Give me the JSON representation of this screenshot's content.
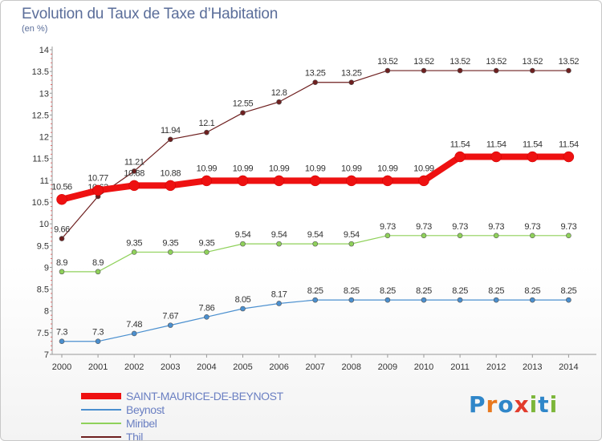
{
  "header": {
    "title": "Evolution du Taux de Taxe d’Habitation",
    "subtitle": "(en %)"
  },
  "logo": {
    "text": "Proxiti",
    "letters": [
      "P",
      "r",
      "o",
      "x",
      "i",
      "t",
      "i"
    ],
    "colors": [
      "#2f86c9",
      "#e8781e",
      "#2f86c9",
      "#e23b2c",
      "#7cb63a",
      "#2f86c9",
      "#7cb63a"
    ]
  },
  "chart_data": {
    "type": "line",
    "x": [
      "2000",
      "2001",
      "2002",
      "2003",
      "2004",
      "2005",
      "2006",
      "2007",
      "2008",
      "2009",
      "2010",
      "2011",
      "2012",
      "2013",
      "2014"
    ],
    "ylim": [
      7,
      14
    ],
    "yticks": [
      "7",
      "7.5",
      "8",
      "8.5",
      "9",
      "9.5",
      "10",
      "10.5",
      "11",
      "11.5",
      "12",
      "12.5",
      "13",
      "13.5",
      "14"
    ],
    "grid": false,
    "legend_position": "bottom-left",
    "series": [
      {
        "name": "Thil",
        "color": "#6e1f1f",
        "values": [
          9.66,
          10.63,
          11.21,
          11.94,
          12.1,
          12.55,
          12.8,
          13.25,
          13.25,
          13.52,
          13.52,
          13.52,
          13.52,
          13.52,
          13.52
        ],
        "labels": [
          "9.66",
          "10.63",
          "11.21",
          "11.94",
          "12.1",
          "12.55",
          "12.8",
          "13.25",
          "13.25",
          "13.52",
          "13.52",
          "13.52",
          "13.52",
          "13.52",
          "13.52"
        ]
      },
      {
        "name": "Miribel",
        "color": "#8fd15a",
        "values": [
          8.9,
          8.9,
          9.35,
          9.35,
          9.35,
          9.54,
          9.54,
          9.54,
          9.54,
          9.73,
          9.73,
          9.73,
          9.73,
          9.73,
          9.73
        ],
        "labels": [
          "8.9",
          "8.9",
          "9.35",
          "9.35",
          "9.35",
          "9.54",
          "9.54",
          "9.54",
          "9.54",
          "9.73",
          "9.73",
          "9.73",
          "9.73",
          "9.73",
          "9.73"
        ]
      },
      {
        "name": "Beynost",
        "color": "#4a8fcf",
        "values": [
          7.3,
          7.3,
          7.48,
          7.67,
          7.86,
          8.05,
          8.17,
          8.25,
          8.25,
          8.25,
          8.25,
          8.25,
          8.25,
          8.25,
          8.25
        ],
        "labels": [
          "7.3",
          "7.3",
          "7.48",
          "7.67",
          "7.86",
          "8.05",
          "8.17",
          "8.25",
          "8.25",
          "8.25",
          "8.25",
          "8.25",
          "8.25",
          "8.25",
          "8.25"
        ]
      },
      {
        "name": "SAINT-MAURICE-DE-BEYNOST",
        "color": "#ee1111",
        "values": [
          10.56,
          10.77,
          10.88,
          10.88,
          10.99,
          10.99,
          10.99,
          10.99,
          10.99,
          10.99,
          10.99,
          11.54,
          11.54,
          11.54,
          11.54
        ],
        "labels": [
          "10.56",
          "10.77",
          "10.88",
          "10.88",
          "10.99",
          "10.99",
          "10.99",
          "10.99",
          "10.99",
          "10.99",
          "10.99",
          "11.54",
          "11.54",
          "11.54",
          "11.54"
        ]
      }
    ]
  },
  "legend": {
    "items": [
      {
        "label": "SAINT-MAURICE-DE-BEYNOST",
        "color": "#ee1111",
        "thickness": "thick"
      },
      {
        "label": "Beynost",
        "color": "#4a8fcf",
        "thickness": "thin"
      },
      {
        "label": "Miribel",
        "color": "#8fd15a",
        "thickness": "thin"
      },
      {
        "label": "Thil",
        "color": "#6e1f1f",
        "thickness": "thin"
      }
    ]
  }
}
